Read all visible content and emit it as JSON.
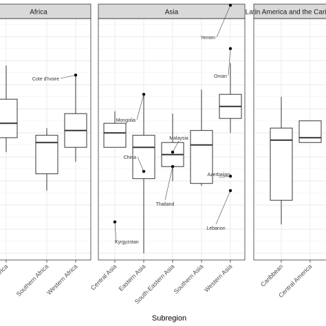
{
  "chart_data": {
    "type": "box",
    "xlabel": "Subregion",
    "ylabel": "",
    "ylim": [
      0,
      100
    ],
    "grid": true,
    "facets": [
      {
        "name": "Africa",
        "categories": [
          {
            "label": "Eastern Africa",
            "box": {
              "min": 62,
              "q1": 68,
              "median": 74,
              "q3": 84,
              "max": 98
            },
            "outliers": []
          },
          {
            "label": "Southern Africa",
            "box": {
              "min": 46,
              "q1": 53,
              "median": 66,
              "q3": 69,
              "max": 72
            },
            "outliers": []
          },
          {
            "label": "Western Africa",
            "box": {
              "min": 58,
              "q1": 64,
              "median": 71,
              "q3": 78,
              "max": 94
            },
            "outliers": [
              {
                "value": 94,
                "label": "Cote d'Ivoire"
              }
            ]
          }
        ]
      },
      {
        "name": "Asia",
        "categories": [
          {
            "label": "Central Asia",
            "box": {
              "min": 64,
              "q1": 64,
              "median": 70,
              "q3": 74,
              "max": 79
            },
            "outliers": [
              {
                "value": 33,
                "label": "Kyrgyzstan"
              }
            ]
          },
          {
            "label": "Eastern Asia",
            "box": {
              "min": 20,
              "q1": 51,
              "median": 64,
              "q3": 69,
              "max": 86
            },
            "outliers": [
              {
                "value": 86,
                "label": "Mongolia"
              },
              {
                "value": 54,
                "label": "China"
              }
            ]
          },
          {
            "label": "South-Eastern Asia",
            "box": {
              "min": 50,
              "q1": 56,
              "median": 61,
              "q3": 66,
              "max": 78
            },
            "outliers": [
              {
                "value": 62,
                "label": "Malaysia"
              },
              {
                "value": 56,
                "label": "Thailand"
              }
            ]
          },
          {
            "label": "Southern Asia",
            "box": {
              "min": 48,
              "q1": 49,
              "median": 65,
              "q3": 71,
              "max": 88
            },
            "outliers": []
          },
          {
            "label": "Western Asia",
            "box": {
              "min": 70,
              "q1": 76,
              "median": 81,
              "q3": 86,
              "max": 99
            },
            "outliers": [
              {
                "value": 123,
                "label": "Yemen"
              },
              {
                "value": 105,
                "label": "Oman"
              },
              {
                "value": 52,
                "label": "Azerbaijan"
              },
              {
                "value": 46,
                "label": "Lebanon"
              }
            ]
          }
        ]
      },
      {
        "name": "Latin America and the Caribbean",
        "categories": [
          {
            "label": "Caribbean",
            "box": {
              "min": 32,
              "q1": 42,
              "median": 67,
              "q3": 72,
              "max": 85
            },
            "outliers": []
          },
          {
            "label": "Central America",
            "box": {
              "min": 66,
              "q1": 66,
              "median": 68,
              "q3": 75,
              "max": 75
            },
            "outliers": []
          }
        ]
      }
    ]
  }
}
